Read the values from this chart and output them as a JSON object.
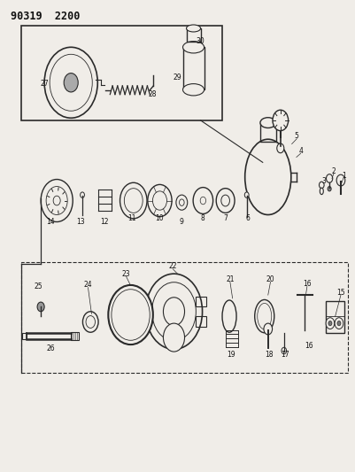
{
  "title": "90319  2200",
  "background_color": "#f0ede8",
  "line_color": "#2a2a2a",
  "text_color": "#111111",
  "fig_width": 4.01,
  "fig_height": 5.33,
  "dpi": 100
}
